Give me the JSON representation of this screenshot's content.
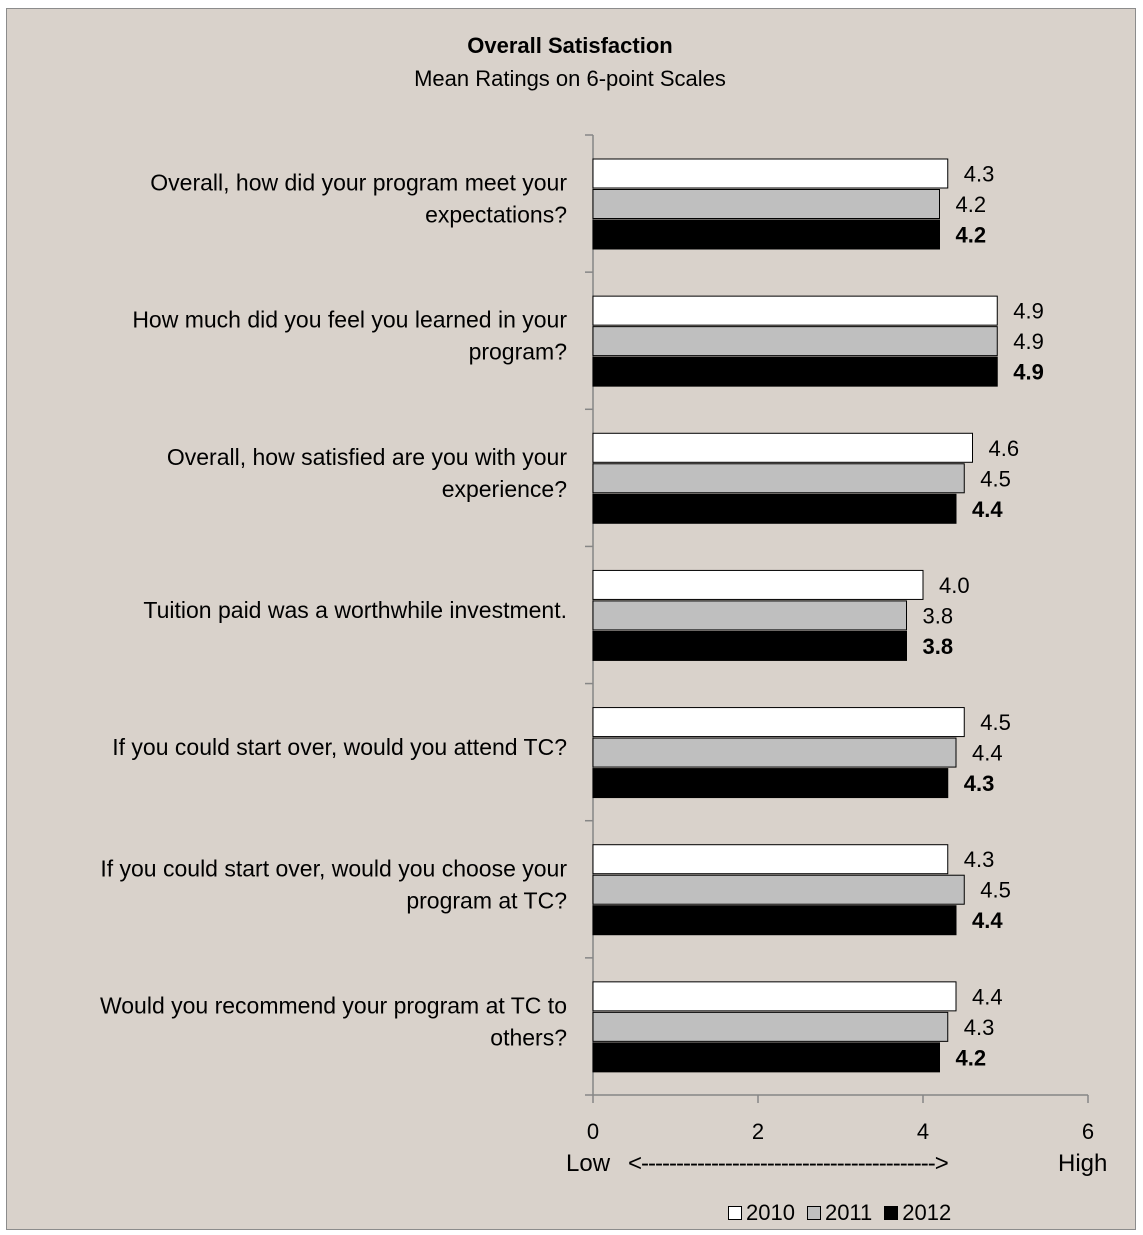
{
  "chart_data": {
    "type": "bar",
    "orientation": "horizontal",
    "title": "Overall Satisfaction",
    "subtitle": "Mean Ratings on 6-point Scales",
    "categories": [
      [
        "Overall, how did your program meet your",
        "expectations?"
      ],
      [
        "How much did you feel you learned in your",
        "program?"
      ],
      [
        "Overall, how satisfied are you with your",
        "experience?"
      ],
      [
        "Tuition paid was a worthwhile investment."
      ],
      [
        "If you could start over, would you attend TC?"
      ],
      [
        "If you could start over, would you choose your",
        "program at TC?"
      ],
      [
        "Would you recommend your program at TC to",
        "others?"
      ]
    ],
    "series": [
      {
        "name": "2010",
        "color": "#ffffff",
        "values": [
          4.3,
          4.9,
          4.6,
          4.0,
          4.5,
          4.3,
          4.4
        ],
        "labels": [
          "4.3",
          "4.9",
          "4.6",
          "4.0",
          "4.5",
          "4.3",
          "4.4"
        ]
      },
      {
        "name": "2011",
        "color": "#bfbfbf",
        "values": [
          4.2,
          4.9,
          4.5,
          3.8,
          4.4,
          4.5,
          4.3
        ],
        "labels": [
          "4.2",
          "4.9",
          "4.5",
          "3.8",
          "4.4",
          "4.5",
          "4.3"
        ]
      },
      {
        "name": "2012",
        "color": "#000000",
        "values": [
          4.2,
          4.9,
          4.4,
          3.8,
          4.3,
          4.4,
          4.2
        ],
        "labels": [
          "4.2",
          "4.9",
          "4.4",
          "3.8",
          "4.3",
          "4.4",
          "4.2"
        ]
      }
    ],
    "xlim": [
      0,
      6
    ],
    "xticks": [
      0,
      2,
      4,
      6
    ],
    "xtick_labels": [
      "0",
      "2",
      "4",
      "6"
    ],
    "scale_low": "Low",
    "scale_arrow": "<------------------------------------------>",
    "scale_high": "High",
    "legend_position": "bottom-right",
    "grid": false
  }
}
